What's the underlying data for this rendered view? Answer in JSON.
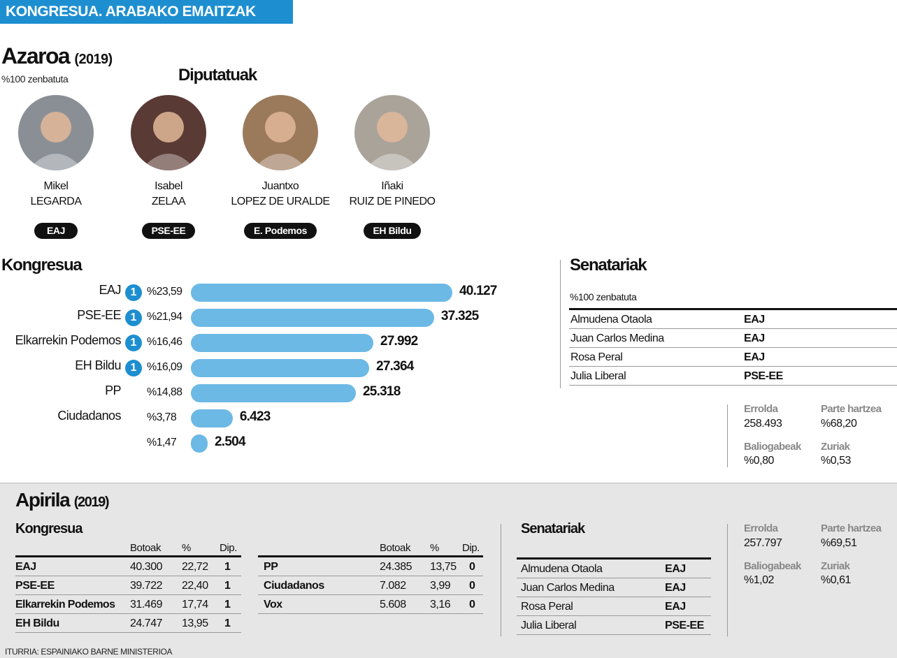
{
  "header": {
    "banner": "KONGRESUA. ARABAKO EMAITZAK"
  },
  "november": {
    "title": "Azaroa",
    "year": "(2019)",
    "counted": "%100 zenbatuta",
    "deputies_title": "Diputatuak",
    "deputies": [
      {
        "first": "Mikel",
        "last": "LEGARDA",
        "party": "EAJ",
        "avatar_color": "#8a8f96"
      },
      {
        "first": "Isabel",
        "last": "ZELAA",
        "party": "PSE-EE",
        "avatar_color": "#5a3a34"
      },
      {
        "first": "Juantxo",
        "last": "LOPEZ DE URALDE",
        "party": "E. Podemos",
        "avatar_color": "#9b7a5c"
      },
      {
        "first": "Iñaki",
        "last": "RUIZ DE PINEDO",
        "party": "EH Bildu",
        "avatar_color": "#a9a39a"
      }
    ],
    "congress_title": "Kongresua",
    "senate_title": "Senatariak",
    "senate_counted": "%100 zenbatuta",
    "senators": [
      {
        "name": "Almudena Otaola",
        "party": "EAJ"
      },
      {
        "name": "Juan Carlos Medina",
        "party": "EAJ"
      },
      {
        "name": "Rosa Peral",
        "party": "EAJ"
      },
      {
        "name": "Julia Liberal",
        "party": "PSE-EE"
      }
    ],
    "stats": {
      "census_label": "Errolda",
      "census": "258.493",
      "turnout_label": "Parte hartzea",
      "turnout": "%68,20",
      "invalid_label": "Baliogabeak",
      "invalid": "%0,80",
      "blank_label": "Zuriak",
      "blank": "%0,53"
    }
  },
  "chart_data": {
    "type": "bar",
    "orientation": "horizontal",
    "title": "Kongresua",
    "bar_color": "#6cb9e6",
    "categories": [
      "EAJ",
      "PSE-EE",
      "Elkarrekin Podemos",
      "EH Bildu",
      "PP",
      "Ciudadanos",
      ""
    ],
    "values": [
      40127,
      37325,
      27992,
      27364,
      25318,
      6423,
      2504
    ],
    "value_labels": [
      "40.127",
      "37.325",
      "27.992",
      "27.364",
      "25.318",
      "6.423",
      "2.504"
    ],
    "percent_labels": [
      "%23,59",
      "%21,94",
      "%16,46",
      "%16,09",
      "%14,88",
      "%3,78",
      "%1,47"
    ],
    "seats": [
      "1",
      "1",
      "1",
      "1",
      "",
      "",
      ""
    ],
    "xlim": [
      0,
      40127
    ]
  },
  "april": {
    "title": "Apirila",
    "year": "(2019)",
    "congress_title": "Kongresua",
    "columns": {
      "votes": "Botoak",
      "pct": "%",
      "seats": "Dip."
    },
    "table_left": [
      {
        "party": "EAJ",
        "votes": "40.300",
        "pct": "22,72",
        "seats": "1"
      },
      {
        "party": "PSE-EE",
        "votes": "39.722",
        "pct": "22,40",
        "seats": "1"
      },
      {
        "party": "Elkarrekin Podemos",
        "votes": "31.469",
        "pct": "17,74",
        "seats": "1"
      },
      {
        "party": "EH Bildu",
        "votes": "24.747",
        "pct": "13,95",
        "seats": "1"
      }
    ],
    "table_right": [
      {
        "party": "PP",
        "votes": "24.385",
        "pct": "13,75",
        "seats": "0"
      },
      {
        "party": "Ciudadanos",
        "votes": "7.082",
        "pct": "3,99",
        "seats": "0"
      },
      {
        "party": "Vox",
        "votes": "5.608",
        "pct": "3,16",
        "seats": "0"
      }
    ],
    "senate_title": "Senatariak",
    "senators": [
      {
        "name": "Almudena Otaola",
        "party": "EAJ"
      },
      {
        "name": "Juan Carlos Medina",
        "party": "EAJ"
      },
      {
        "name": "Rosa Peral",
        "party": "EAJ"
      },
      {
        "name": "Julia Liberal",
        "party": "PSE-EE"
      }
    ],
    "stats": {
      "census_label": "Errolda",
      "census": "257.797",
      "turnout_label": "Parte hartzea",
      "turnout": "%69,51",
      "invalid_label": "Baliogabeak",
      "invalid": "%1,02",
      "blank_label": "Zuriak",
      "blank": "%0,61"
    }
  },
  "source": "ITURRIA: ESPAINIAKO BARNE MINISTERIOA"
}
